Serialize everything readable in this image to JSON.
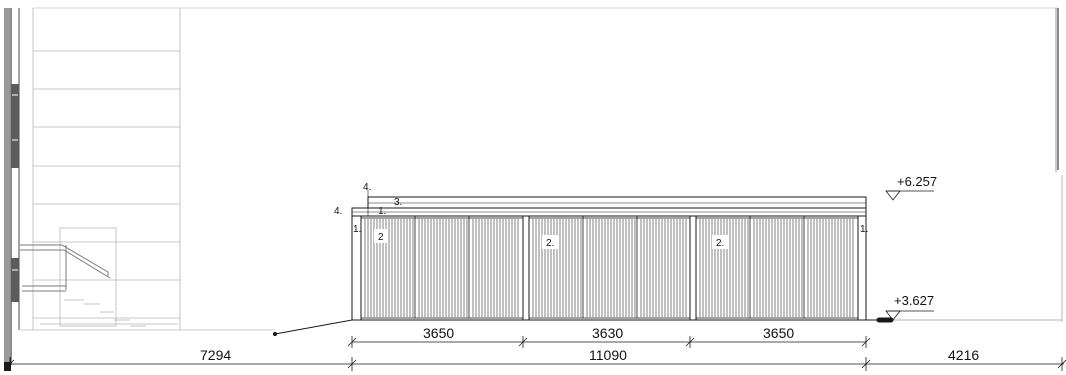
{
  "elevations": {
    "top": "+6.257",
    "bottom": "+3.627"
  },
  "tags": {
    "a": "4.",
    "b": "4.",
    "c": "3.",
    "d": "1.",
    "e": "1.",
    "f": "1.",
    "g": "2",
    "h": "2.",
    "i": "2."
  },
  "dimensions": {
    "bays": [
      "3650",
      "3630",
      "3650"
    ],
    "overall_left": "7294",
    "overall_mid": "11090",
    "overall_right": "4216"
  },
  "colors": {
    "line": "#1a1a1a",
    "light": "#b8b8b8",
    "dark": "#5c5c5c",
    "fill": "#7a7a7a"
  }
}
